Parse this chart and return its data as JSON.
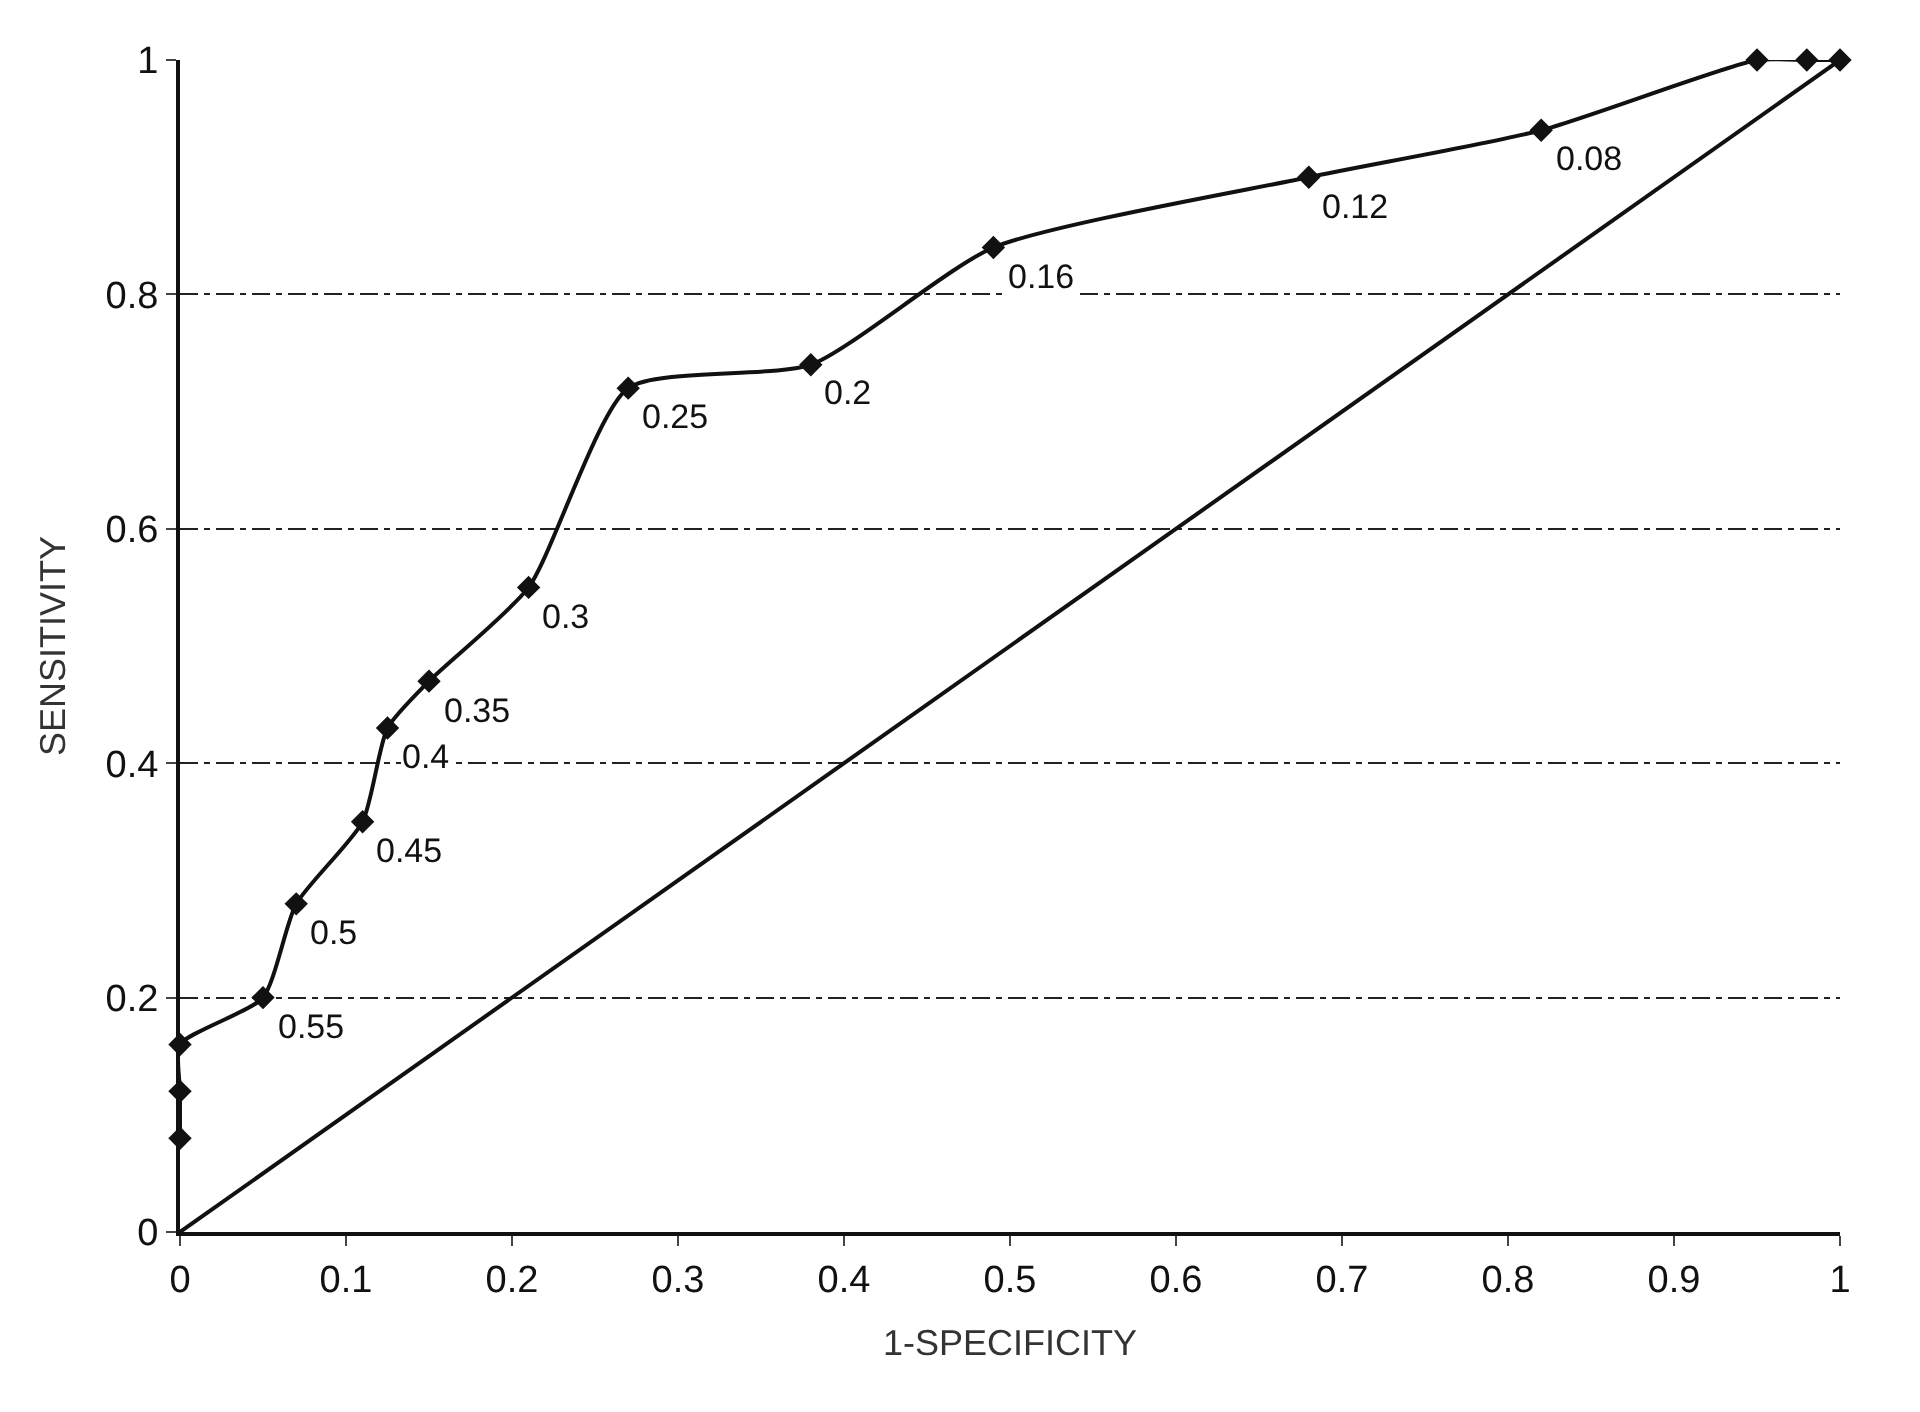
{
  "chart_data": {
    "type": "line",
    "xlabel": "1-SPECIFICITY",
    "ylabel": "SENSITIVITY",
    "xlim": [
      0,
      1
    ],
    "ylim": [
      0,
      1
    ],
    "xticks": [
      0,
      0.1,
      0.2,
      0.3,
      0.4,
      0.5,
      0.6,
      0.7,
      0.8,
      0.9,
      1
    ],
    "yticks": [
      0,
      0.2,
      0.4,
      0.6,
      0.8,
      1
    ],
    "grid": "y",
    "series": [
      {
        "color": "#111111",
        "marker": "diamond",
        "x": [
          0,
          0,
          0,
          0.05,
          0.07,
          0.11,
          0.125,
          0.15,
          0.21,
          0.27,
          0.38,
          0.49,
          0.68,
          0.82,
          0.95,
          0.98,
          1
        ],
        "values": [
          0.08,
          0.12,
          0.16,
          0.2,
          0.28,
          0.35,
          0.43,
          0.47,
          0.55,
          0.72,
          0.74,
          0.84,
          0.9,
          0.94,
          1,
          1,
          1
        ]
      },
      {
        "color": "#111111",
        "marker": "none",
        "x": [
          0,
          1
        ],
        "values": [
          0,
          1
        ]
      }
    ],
    "annotations": [
      {
        "text": "0.55",
        "x": 0.05,
        "y": 0.2
      },
      {
        "text": "0.5",
        "x": 0.07,
        "y": 0.28
      },
      {
        "text": "0.45",
        "x": 0.11,
        "y": 0.35
      },
      {
        "text": "0.4",
        "x": 0.125,
        "y": 0.43
      },
      {
        "text": "0.35",
        "x": 0.15,
        "y": 0.47
      },
      {
        "text": "0.3",
        "x": 0.21,
        "y": 0.55
      },
      {
        "text": "0.25",
        "x": 0.27,
        "y": 0.72
      },
      {
        "text": "0.2",
        "x": 0.38,
        "y": 0.74
      },
      {
        "text": "0.16",
        "x": 0.49,
        "y": 0.84
      },
      {
        "text": "0.12",
        "x": 0.68,
        "y": 0.9
      },
      {
        "text": "0.08",
        "x": 0.82,
        "y": 0.94
      }
    ]
  }
}
